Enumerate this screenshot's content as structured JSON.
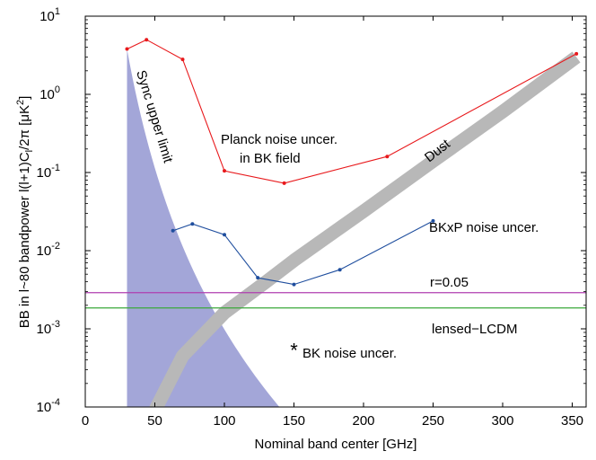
{
  "chart_data": {
    "type": "line",
    "xlabel": "Nominal band center [GHz]",
    "ylabel": "BB in l~80 bandpower l(l+1)C",
    "ylabel_sub": "l",
    "ylabel_tail": "/2π [μK",
    "ylabel_sup": "2",
    "ylabel_end": "]",
    "xlim": [
      0,
      360
    ],
    "ylim_exp": [
      -4,
      1
    ],
    "log_y": true,
    "x_ticks": [
      "0",
      "50",
      "100",
      "150",
      "200",
      "250",
      "300",
      "350"
    ],
    "x_tick_values": [
      0,
      50,
      100,
      150,
      200,
      250,
      300,
      350
    ],
    "y_ticks": [
      {
        "base": "10",
        "exp": "-4",
        "value": -4
      },
      {
        "base": "10",
        "exp": "-3",
        "value": -3
      },
      {
        "base": "10",
        "exp": "-2",
        "value": -2
      },
      {
        "base": "10",
        "exp": "-1",
        "value": -1
      },
      {
        "base": "10",
        "exp": "0",
        "value": 0
      },
      {
        "base": "10",
        "exp": "1",
        "value": 1
      }
    ],
    "grid": false,
    "series": [
      {
        "name": "Planck noise uncer.",
        "color": "#e8191c",
        "x": [
          30,
          44,
          70,
          100,
          143,
          217,
          353
        ],
        "y": [
          3.8,
          5.0,
          2.8,
          0.105,
          0.073,
          0.16,
          3.3
        ]
      },
      {
        "name": "BKxP noise uncer.",
        "color": "#1f4e9e",
        "x": [
          63,
          77,
          100,
          124,
          150,
          183,
          250
        ],
        "y": [
          0.018,
          0.022,
          0.016,
          0.0045,
          0.0037,
          0.0057,
          0.024
        ]
      }
    ],
    "hlines": [
      {
        "name": "r=0.05",
        "y": 0.0029,
        "color": "#b03fb0"
      },
      {
        "name": "lensed-LCDM",
        "y": 0.00185,
        "color": "#3aa83a"
      }
    ],
    "sync_region": {
      "name": "Sync upper limit",
      "color": "#a3a6d8",
      "x0": 30,
      "y_at_x0": 3.8,
      "y_at_200": 0.0001,
      "slope_exp": -6.86
    },
    "dust_band": {
      "name": "Dust",
      "color": "#b8b8b8",
      "x": [
        50,
        70,
        100,
        130,
        150,
        200,
        250,
        300,
        353
      ],
      "y_center": [
        9e-05,
        0.00045,
        0.0016,
        0.004,
        0.0075,
        0.032,
        0.14,
        0.6,
        3.0
      ]
    },
    "markers": [
      {
        "name": "BK noise uncer.",
        "symbol": "*",
        "x": 150,
        "y": 0.00055
      }
    ],
    "annotations": {
      "planck_line1": "Planck noise uncer.",
      "planck_line2": "in BK field",
      "bkxp": "BKxP noise uncer.",
      "r": "r=0.05",
      "lcdm": "lensed−LCDM",
      "bk": "BK noise uncer.",
      "dust": "Dust",
      "sync": "Sync upper limit"
    }
  }
}
